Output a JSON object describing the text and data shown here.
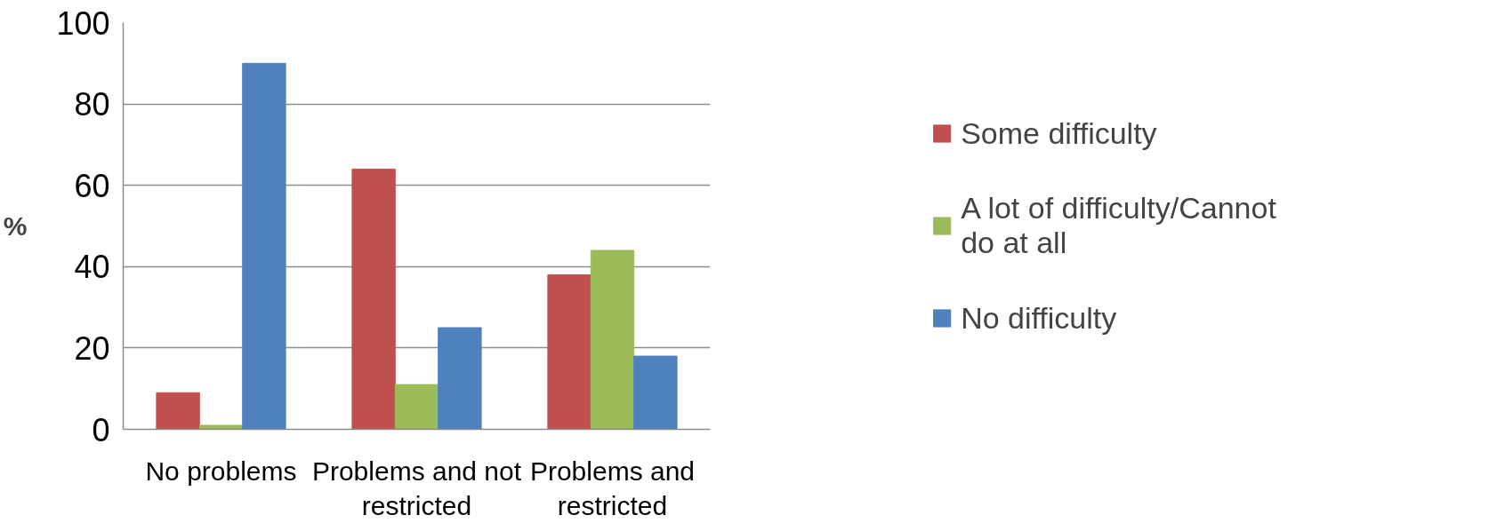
{
  "chart_data": {
    "type": "bar",
    "ylabel": "%",
    "categories": [
      "No problems",
      "Problems and not restricted",
      "Problems and restricted"
    ],
    "series": [
      {
        "name": "Some difficulty",
        "color": "#c0504d",
        "values": [
          9,
          64,
          38
        ]
      },
      {
        "name": "A lot of difficulty/Cannot do at all",
        "color": "#9bbb59",
        "values": [
          1,
          11,
          44
        ]
      },
      {
        "name": "No difficulty",
        "color": "#4f81bd",
        "values": [
          90,
          25,
          18
        ]
      }
    ],
    "ylim": [
      0,
      100
    ],
    "yticks": [
      0,
      20,
      40,
      60,
      80,
      100
    ],
    "grid": "y",
    "legend": "right"
  }
}
